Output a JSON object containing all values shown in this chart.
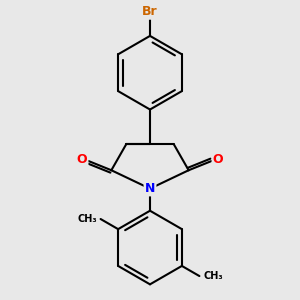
{
  "bg_color": "#e8e8e8",
  "bond_color": "#000000",
  "bond_width": 1.5,
  "atom_colors": {
    "Br": "#cc6600",
    "O": "#ff0000",
    "N": "#0000ff",
    "C": "#000000"
  },
  "font_size": 9,
  "fig_size": [
    3.0,
    3.0
  ]
}
